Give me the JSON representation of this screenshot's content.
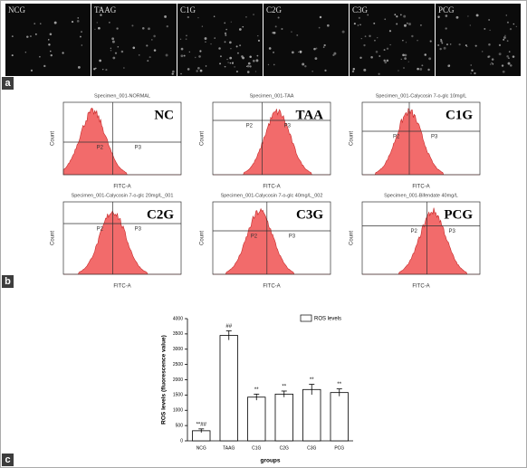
{
  "panel_a": {
    "label": "a",
    "images": [
      "NCG",
      "TAAG",
      "C1G",
      "C2G",
      "C3G",
      "PCG"
    ]
  },
  "panel_b": {
    "label": "b",
    "x_axis": "FITC-A",
    "y_axis": "Count",
    "gate_left": "P2",
    "gate_right": "P3",
    "plots": [
      {
        "specimen": "Specimen_001-NORMAL",
        "label": "NC"
      },
      {
        "specimen": "Specimen_001-TAA",
        "label": "TAA"
      },
      {
        "specimen": "Specimen_001-Calycosin 7-o-glc 10mg/L",
        "label": "C1G"
      },
      {
        "specimen": "Specimen_001-Calycosin 7-o-glc 20mg/L_001",
        "label": "C2G"
      },
      {
        "specimen": "Specimen_001-Calycosin 7-o-glc 40mg/L_002",
        "label": "C3G"
      },
      {
        "specimen": "Specimen_001-Bifendate 40mg/L",
        "label": "PCG"
      }
    ]
  },
  "panel_c": {
    "label": "c"
  },
  "chart_data": {
    "type": "bar",
    "y_label": "ROS levels (fluorescence value)",
    "x_label": "groups",
    "categories": [
      "NCG",
      "TAAG",
      "C1G",
      "C2G",
      "C3G",
      "PCG"
    ],
    "series": [
      {
        "name": "ROS levels",
        "color": "#ffffff",
        "values": [
          330,
          3450,
          1430,
          1530,
          1680,
          1580
        ],
        "errors": [
          60,
          150,
          100,
          100,
          170,
          120
        ],
        "annotations": [
          "**##",
          "##",
          "**",
          "**",
          "**",
          "**"
        ]
      }
    ],
    "ylim": [
      0,
      4000
    ],
    "yticks": [
      0,
      500,
      1000,
      1500,
      2000,
      2500,
      3000,
      3500,
      4000
    ]
  }
}
